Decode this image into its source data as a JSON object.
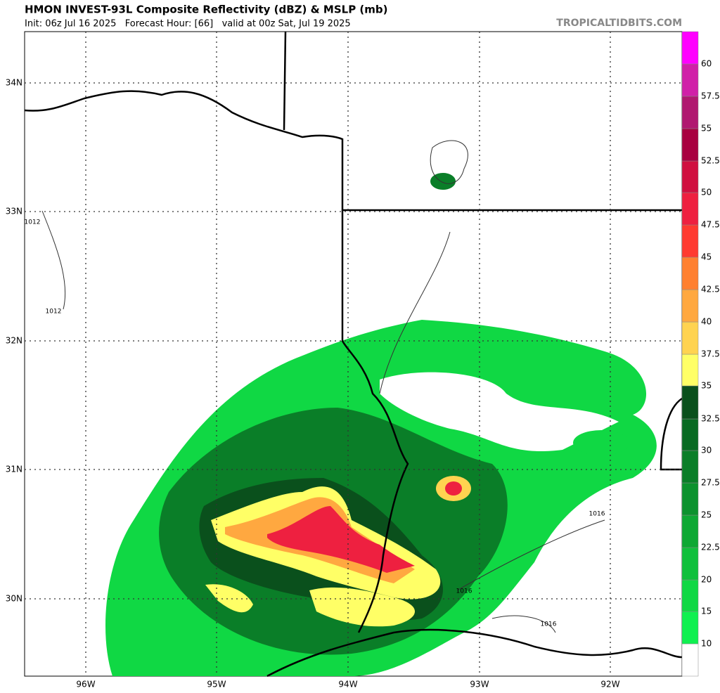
{
  "header": {
    "title": "HMON INVEST-93L Composite Reflectivity (dBZ) & MSLP (mb)",
    "subtitle": "Init: 06z Jul 16 2025   Forecast Hour: [66]   valid at 00z Sat, Jul 19 2025",
    "credit": "TROPICALTIDBITS.COM"
  },
  "map": {
    "lat_labels": [
      "34N",
      "33N",
      "32N",
      "31N",
      "30N"
    ],
    "lon_labels": [
      "96W",
      "95W",
      "94W",
      "93W",
      "92W"
    ],
    "isobar_labels": [
      "1012",
      "1012",
      "1016",
      "1016",
      "1016"
    ]
  },
  "colorbar": {
    "labels": [
      "10",
      "15",
      "20",
      "22.5",
      "25",
      "27.5",
      "30",
      "32.5",
      "35",
      "37.5",
      "40",
      "42.5",
      "45",
      "47.5",
      "50",
      "52.5",
      "55",
      "57.5",
      "60"
    ],
    "colors": [
      "#ffffff",
      "#10f050",
      "#10d844",
      "#10c03c",
      "#0ea834",
      "#0c922e",
      "#0a7e28",
      "#086a22",
      "#0a501c",
      "#ffff66",
      "#ffd350",
      "#ffa840",
      "#ff8030",
      "#ff3a30",
      "#ee2040",
      "#d01040",
      "#a80040",
      "#b01870",
      "#d020a8",
      "#ff00ff"
    ]
  }
}
